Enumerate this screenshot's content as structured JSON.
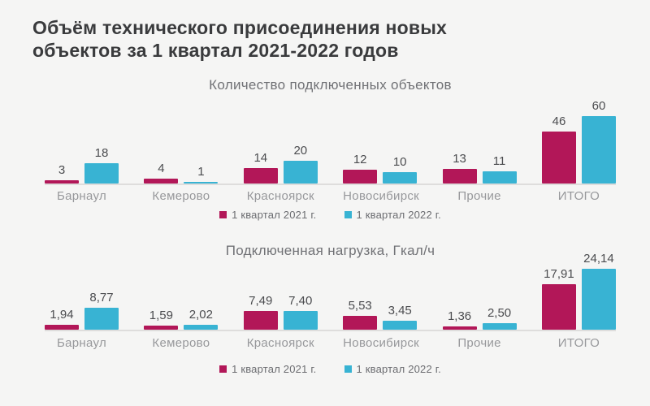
{
  "title": "Объём технического присоединения новых объектов за 1 квартал 2021-2022 годов",
  "colors": {
    "background": "#f5f5f4",
    "series_2021": "#b21758",
    "series_2022": "#38b3d3",
    "title_text": "#3a3b3d",
    "axis_line": "#dedddc"
  },
  "legend": [
    {
      "label": "1 квартал 2021 г.",
      "color": "#b21758"
    },
    {
      "label": "1 квартал 2022 г.",
      "color": "#38b3d3"
    }
  ],
  "chart_data": [
    {
      "type": "bar",
      "title": "Количество подключенных объектов",
      "categories": [
        "Барнаул",
        "Кемерово",
        "Красноярск",
        "Новосибирск",
        "Прочие",
        "ИТОГО"
      ],
      "series": [
        {
          "name": "1 квартал 2021 г.",
          "color": "#b21758",
          "values": [
            3,
            4,
            14,
            12,
            13,
            46
          ],
          "labels": [
            "3",
            "4",
            "14",
            "12",
            "13",
            "46"
          ]
        },
        {
          "name": "1 квартал 2022 г.",
          "color": "#38b3d3",
          "values": [
            18,
            1,
            20,
            10,
            11,
            60
          ],
          "labels": [
            "18",
            "1",
            "20",
            "10",
            "11",
            "60"
          ]
        }
      ],
      "ylim": [
        0,
        60
      ],
      "grid": false,
      "legend_position": "bottom"
    },
    {
      "type": "bar",
      "title": "Подключенная нагрузка, Гкал/ч",
      "categories": [
        "Барнаул",
        "Кемерово",
        "Красноярск",
        "Новосибирск",
        "Прочие",
        "ИТОГО"
      ],
      "series": [
        {
          "name": "1 квартал 2021 г.",
          "color": "#b21758",
          "values": [
            1.94,
            1.59,
            7.49,
            5.53,
            1.36,
            17.91
          ],
          "labels": [
            "1,94",
            "1,59",
            "7,49",
            "5,53",
            "1,36",
            "17,91"
          ]
        },
        {
          "name": "1 квартал 2022 г.",
          "color": "#38b3d3",
          "values": [
            8.77,
            2.02,
            7.4,
            3.45,
            2.5,
            24.14
          ],
          "labels": [
            "8,77",
            "2,02",
            "7,40",
            "3,45",
            "2,50",
            "24,14"
          ]
        }
      ],
      "ylim": [
        0,
        24.14
      ],
      "grid": false,
      "legend_position": "bottom"
    }
  ]
}
